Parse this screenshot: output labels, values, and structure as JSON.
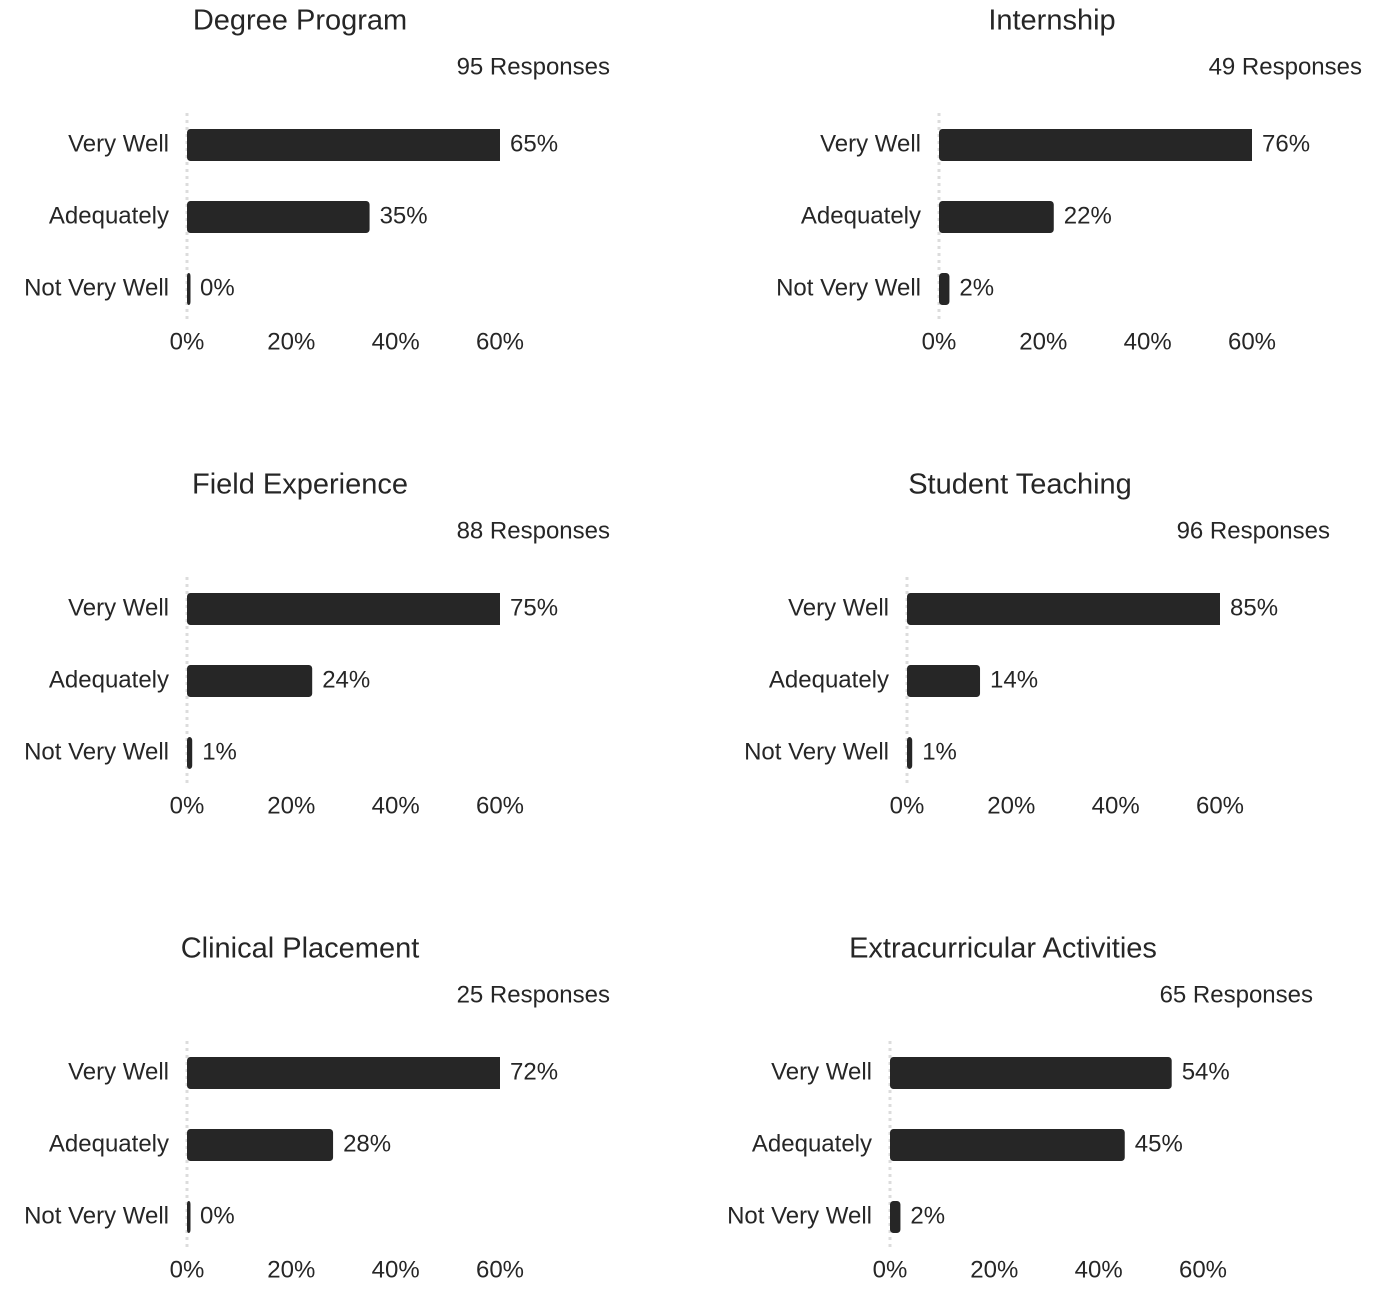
{
  "chart_data": [
    {
      "type": "bar",
      "title": "Degree Program",
      "subtitle": "95 Responses",
      "categories": [
        "Very Well",
        "Adequately",
        "Not Very Well"
      ],
      "values": [
        65,
        35,
        0
      ],
      "value_labels": [
        "65%",
        "35%",
        "0%"
      ],
      "color": "#262626",
      "xlim": [
        0,
        60
      ],
      "xticks": [
        {
          "value": 0,
          "label": "0%"
        },
        {
          "value": 20,
          "label": "20%"
        },
        {
          "value": 40,
          "label": "40%"
        },
        {
          "value": 60,
          "label": "60%"
        }
      ]
    },
    {
      "type": "bar",
      "title": "Internship",
      "subtitle": "49 Responses",
      "categories": [
        "Very Well",
        "Adequately",
        "Not Very Well"
      ],
      "values": [
        76,
        22,
        2
      ],
      "value_labels": [
        "76%",
        "22%",
        "2%"
      ],
      "color": "#262626",
      "xlim": [
        0,
        60
      ],
      "xticks": [
        {
          "value": 0,
          "label": "0%"
        },
        {
          "value": 20,
          "label": "20%"
        },
        {
          "value": 40,
          "label": "40%"
        },
        {
          "value": 60,
          "label": "60%"
        }
      ]
    },
    {
      "type": "bar",
      "title": "Field Experience",
      "subtitle": "88 Responses",
      "categories": [
        "Very Well",
        "Adequately",
        "Not Very Well"
      ],
      "values": [
        75,
        24,
        1
      ],
      "value_labels": [
        "75%",
        "24%",
        "1%"
      ],
      "color": "#262626",
      "xlim": [
        0,
        60
      ],
      "xticks": [
        {
          "value": 0,
          "label": "0%"
        },
        {
          "value": 20,
          "label": "20%"
        },
        {
          "value": 40,
          "label": "40%"
        },
        {
          "value": 60,
          "label": "60%"
        }
      ]
    },
    {
      "type": "bar",
      "title": "Student Teaching",
      "subtitle": "96 Responses",
      "categories": [
        "Very Well",
        "Adequately",
        "Not Very Well"
      ],
      "values": [
        85,
        14,
        1
      ],
      "value_labels": [
        "85%",
        "14%",
        "1%"
      ],
      "color": "#262626",
      "xlim": [
        0,
        60
      ],
      "xticks": [
        {
          "value": 0,
          "label": "0%"
        },
        {
          "value": 20,
          "label": "20%"
        },
        {
          "value": 40,
          "label": "40%"
        },
        {
          "value": 60,
          "label": "60%"
        }
      ]
    },
    {
      "type": "bar",
      "title": "Clinical Placement",
      "subtitle": "25 Responses",
      "categories": [
        "Very Well",
        "Adequately",
        "Not Very Well"
      ],
      "values": [
        72,
        28,
        0
      ],
      "value_labels": [
        "72%",
        "28%",
        "0%"
      ],
      "color": "#262626",
      "xlim": [
        0,
        60
      ],
      "xticks": [
        {
          "value": 0,
          "label": "0%"
        },
        {
          "value": 20,
          "label": "20%"
        },
        {
          "value": 40,
          "label": "40%"
        },
        {
          "value": 60,
          "label": "60%"
        }
      ]
    },
    {
      "type": "bar",
      "title": "Extracurricular Activities",
      "subtitle": "65 Responses",
      "categories": [
        "Very Well",
        "Adequately",
        "Not Very Well"
      ],
      "values": [
        54,
        45,
        2
      ],
      "value_labels": [
        "54%",
        "45%",
        "2%"
      ],
      "color": "#262626",
      "xlim": [
        0,
        60
      ],
      "xticks": [
        {
          "value": 0,
          "label": "0%"
        },
        {
          "value": 20,
          "label": "20%"
        },
        {
          "value": 40,
          "label": "40%"
        },
        {
          "value": 60,
          "label": "60%"
        }
      ]
    }
  ]
}
